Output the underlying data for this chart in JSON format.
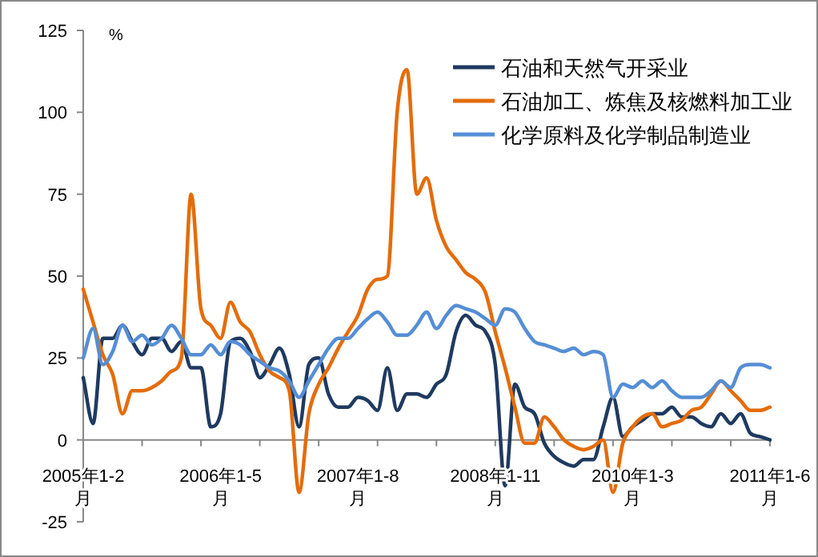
{
  "chart_data": {
    "type": "line",
    "ylabel": "%",
    "categories": [
      "2005年1-2月",
      null,
      null,
      null,
      null,
      null,
      null,
      null,
      null,
      null,
      null,
      null,
      null,
      null,
      "2006年1-5月",
      null,
      null,
      null,
      null,
      null,
      null,
      null,
      null,
      null,
      null,
      null,
      null,
      null,
      "2007年1-8月",
      null,
      null,
      null,
      null,
      null,
      null,
      null,
      null,
      null,
      null,
      null,
      null,
      null,
      "2008年1-11月",
      null,
      null,
      null,
      null,
      null,
      null,
      null,
      null,
      null,
      null,
      null,
      null,
      null,
      "2010年1-3月",
      null,
      null,
      null,
      null,
      null,
      null,
      null,
      null,
      null,
      null,
      null,
      null,
      null,
      "2011年1-6月"
    ],
    "ylim": [
      -25,
      125
    ],
    "yticks": [
      -25,
      0,
      25,
      50,
      75,
      100,
      125
    ],
    "legend": "top right",
    "grid": false,
    "marker": "none",
    "line_style": "solid",
    "series": [
      {
        "name": "石油和天然气开采业",
        "color": "#1f3a60",
        "values": [
          19,
          5,
          31,
          31,
          35,
          30,
          26,
          31,
          31,
          27,
          30,
          22,
          22,
          4,
          8,
          30,
          31,
          27,
          19,
          23,
          28,
          20,
          4,
          23,
          25,
          14,
          10,
          10,
          13,
          12,
          9,
          22,
          9,
          14,
          14,
          13,
          17,
          20,
          33,
          38,
          35,
          33,
          23,
          -14,
          17,
          10,
          8,
          -1,
          -5,
          -7,
          -8,
          -6,
          -6,
          4,
          13,
          1,
          4,
          6,
          8,
          8,
          10,
          7,
          7,
          5,
          4,
          8,
          5,
          8,
          2,
          1,
          0
        ]
      },
      {
        "name": "石油加工、炼焦及核燃料加工业",
        "color": "#e46c0a",
        "values": [
          46,
          36,
          26,
          20,
          8,
          15,
          15,
          16,
          18,
          21,
          25,
          75,
          40,
          35,
          31,
          42,
          36,
          33,
          26,
          21,
          19,
          15,
          -16,
          8,
          17,
          22,
          28,
          33,
          38,
          46,
          49,
          50,
          100,
          113,
          75,
          80,
          67,
          59,
          55,
          51,
          49,
          45,
          33,
          22,
          10,
          -1,
          -1,
          7,
          4,
          0,
          -2,
          -3,
          -2,
          0,
          -16,
          -1,
          4,
          7,
          8,
          4,
          5,
          6,
          9,
          10,
          14,
          18,
          15,
          12,
          9,
          9,
          10
        ]
      },
      {
        "name": "化学原料及化学制品制造业",
        "color": "#558ed5",
        "values": [
          25,
          34,
          23,
          27,
          35,
          30,
          32,
          29,
          31,
          35,
          31,
          26,
          26,
          29,
          26,
          30,
          29,
          26,
          24,
          22,
          21,
          18,
          13,
          18,
          23,
          28,
          31,
          31,
          34,
          37,
          39,
          36,
          32,
          32,
          35,
          39,
          34,
          38,
          41,
          40,
          39,
          37,
          35,
          40,
          39,
          34,
          30,
          29,
          28,
          27,
          28,
          26,
          27,
          26,
          13,
          17,
          16,
          18,
          16,
          18,
          15,
          13,
          13,
          13,
          15,
          18,
          16,
          22,
          23,
          23,
          22
        ]
      }
    ]
  }
}
